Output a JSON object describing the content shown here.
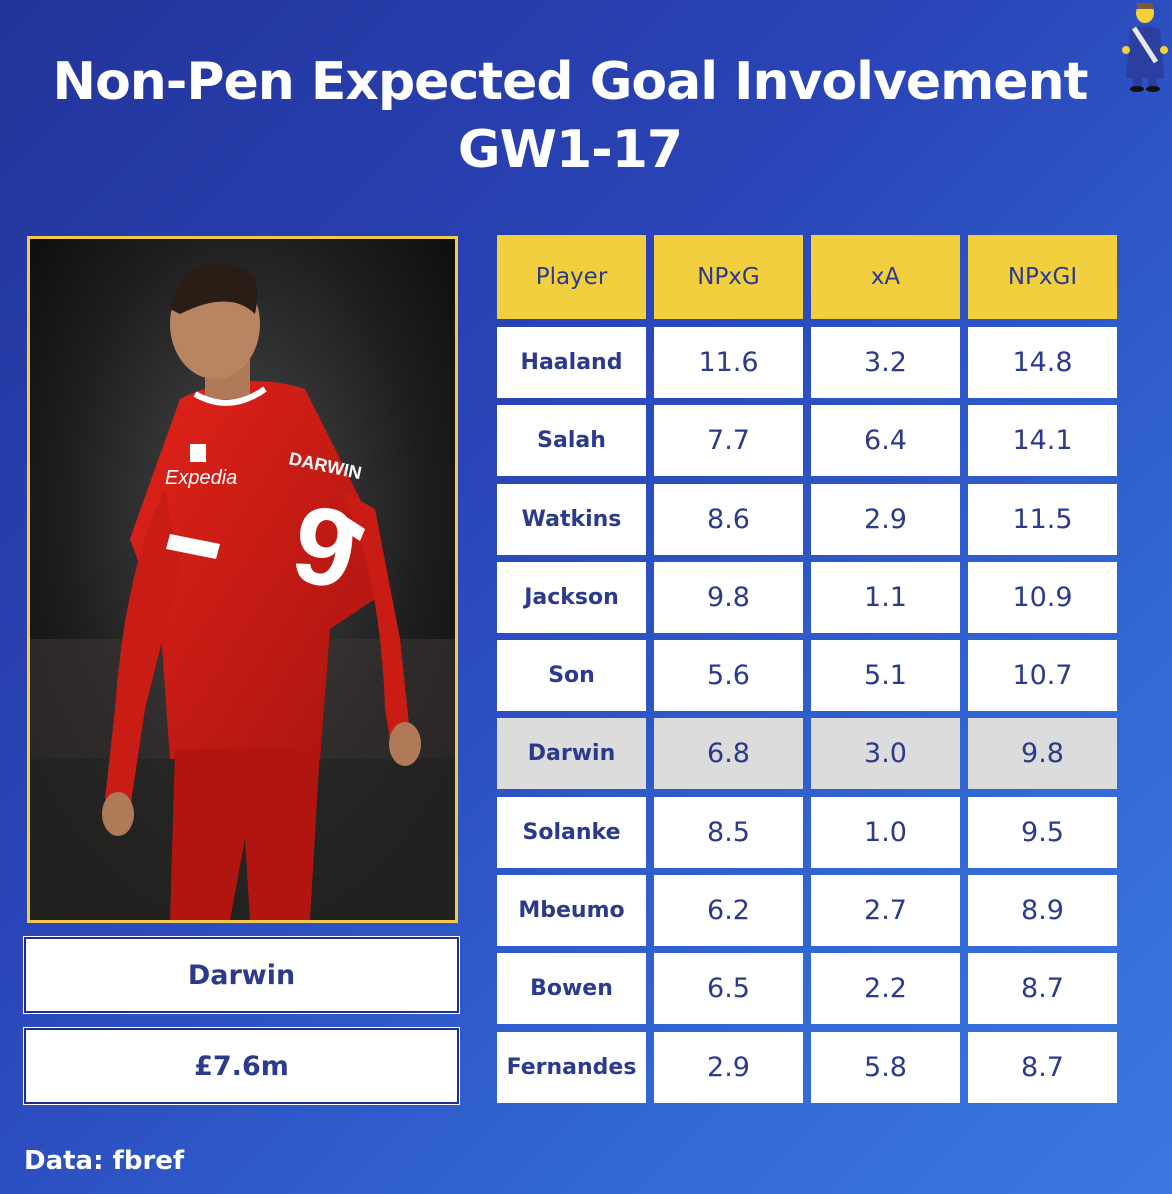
{
  "title": {
    "line1": "Non-Pen Expected Goal Involvement",
    "line2": "GW1-17"
  },
  "chart_data": {
    "type": "table",
    "columns": [
      "Player",
      "NPxG",
      "xA",
      "NPxGI"
    ],
    "rows": [
      {
        "player": "Haaland",
        "npxg": "11.6",
        "xa": "3.2",
        "npxgi": "14.8"
      },
      {
        "player": "Salah",
        "npxg": "7.7",
        "xa": "6.4",
        "npxgi": "14.1"
      },
      {
        "player": "Watkins",
        "npxg": "8.6",
        "xa": "2.9",
        "npxgi": "11.5"
      },
      {
        "player": "Jackson",
        "npxg": "9.8",
        "xa": "1.1",
        "npxgi": "10.9"
      },
      {
        "player": "Son",
        "npxg": "5.6",
        "xa": "5.1",
        "npxgi": "10.7"
      },
      {
        "player": "Darwin",
        "npxg": "6.8",
        "xa": "3.0",
        "npxgi": "9.8"
      },
      {
        "player": "Solanke",
        "npxg": "8.5",
        "xa": "1.0",
        "npxgi": "9.5"
      },
      {
        "player": "Mbeumo",
        "npxg": "6.2",
        "xa": "2.7",
        "npxgi": "8.9"
      },
      {
        "player": "Bowen",
        "npxg": "6.5",
        "xa": "2.2",
        "npxgi": "8.7"
      },
      {
        "player": "Fernandes",
        "npxg": "2.9",
        "xa": "5.8",
        "npxgi": "8.7"
      }
    ],
    "highlighted_player": "Darwin",
    "colors": {
      "header_fill": "#f2cf3f",
      "cell_fill": "#ffffff",
      "highlight_fill": "#dcdcdc",
      "text": "#2b3a8c"
    }
  },
  "featured_player": {
    "name": "Darwin",
    "price": "£7.6m",
    "photo_icon": "player-photo",
    "shirt_sponsor": "Expedia",
    "shirt_name": "DARWIN",
    "shirt_number": "9"
  },
  "footer": {
    "source": "Data: fbref"
  },
  "mascot_icon": "cartoon-mayor-icon"
}
